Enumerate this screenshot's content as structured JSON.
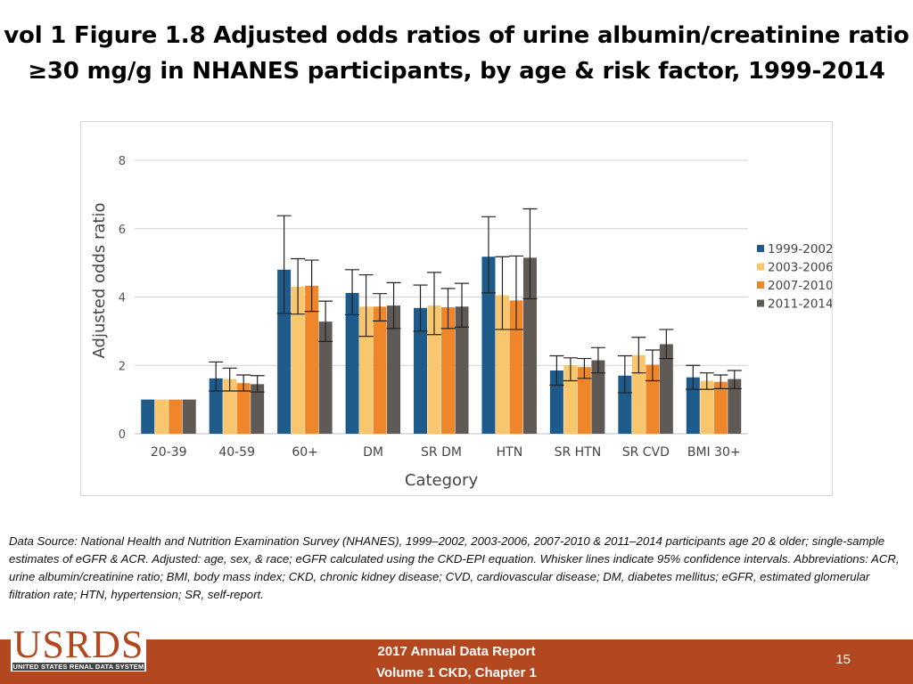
{
  "title": {
    "line1": "vol 1 Figure 1.8 Adjusted odds ratios of urine albumin/creatinine ratio",
    "line2": "≥30 mg/g in NHANES participants, by age & risk factor, 1999-2014"
  },
  "chart_data": {
    "type": "bar",
    "title": "",
    "xlabel": "Category",
    "ylabel": "Adjusted odds ratio",
    "ylim": [
      0,
      8
    ],
    "yticks": [
      0,
      2,
      4,
      6,
      8
    ],
    "grid": true,
    "legend_position": "right",
    "error_bars": "95% confidence intervals",
    "categories": [
      "20-39",
      "40-59",
      "60+",
      "DM",
      "SR DM",
      "HTN",
      "SR HTN",
      "SR CVD",
      "BMI 30+"
    ],
    "series": [
      {
        "name": "1999-2002",
        "color": "#1e5b8a",
        "values": [
          1.0,
          1.62,
          4.8,
          4.12,
          3.68,
          5.18,
          1.85,
          1.7,
          1.65
        ],
        "ci_low": [
          1.0,
          1.25,
          3.52,
          3.48,
          3.0,
          4.12,
          1.42,
          1.2,
          1.3
        ],
        "ci_high": [
          1.0,
          2.1,
          6.38,
          4.8,
          4.35,
          6.35,
          2.28,
          2.28,
          2.0
        ]
      },
      {
        "name": "2003-2006",
        "color": "#f8c66c",
        "values": [
          1.0,
          1.6,
          4.3,
          3.72,
          3.75,
          4.05,
          2.0,
          2.3,
          1.55
        ],
        "ci_low": [
          1.0,
          1.25,
          3.5,
          2.85,
          2.9,
          3.05,
          1.55,
          1.78,
          1.3
        ],
        "ci_high": [
          1.0,
          1.92,
          5.12,
          4.65,
          4.72,
          5.18,
          2.22,
          2.82,
          1.78
        ]
      },
      {
        "name": "2007-2010",
        "color": "#f0862a",
        "values": [
          1.0,
          1.48,
          4.33,
          3.72,
          3.7,
          3.9,
          1.95,
          2.02,
          1.52
        ],
        "ci_low": [
          1.0,
          1.25,
          3.58,
          3.3,
          3.08,
          3.05,
          1.62,
          1.55,
          1.32
        ],
        "ci_high": [
          1.0,
          1.72,
          5.08,
          4.1,
          4.25,
          5.2,
          2.2,
          2.45,
          1.72
        ]
      },
      {
        "name": "2011-2014",
        "color": "#5f5a55",
        "values": [
          1.0,
          1.45,
          3.28,
          3.75,
          3.72,
          5.15,
          2.15,
          2.62,
          1.6
        ],
        "ci_low": [
          1.0,
          1.22,
          2.7,
          3.08,
          3.12,
          3.95,
          1.78,
          2.2,
          1.32
        ],
        "ci_high": [
          1.0,
          1.7,
          3.88,
          4.42,
          4.4,
          6.58,
          2.52,
          3.05,
          1.85
        ]
      }
    ]
  },
  "datasource": "Data Source: National Health and Nutrition Examination Survey (NHANES), 1999–2002, 2003-2006, 2007-2010 & 2011–2014 participants age 20 & older; single-sample estimates of eGFR & ACR. Adjusted: age, sex, & race; eGFR calculated using the CKD-EPI equation. Whisker lines indicate 95% confidence intervals. Abbreviations: ACR, urine albumin/creatinine ratio; BMI, body mass index; CKD, chronic kidney disease; CVD, cardiovascular disease; DM, diabetes mellitus; eGFR, estimated glomerular filtration rate; HTN, hypertension; SR, self-report.",
  "footer": {
    "logo_text": "USRDS",
    "logo_subtext": "UNITED STATES RENAL DATA SYSTEM",
    "line1": "2017 Annual Data Report",
    "line2": "Volume 1 CKD, Chapter 1",
    "page_number": "15"
  }
}
